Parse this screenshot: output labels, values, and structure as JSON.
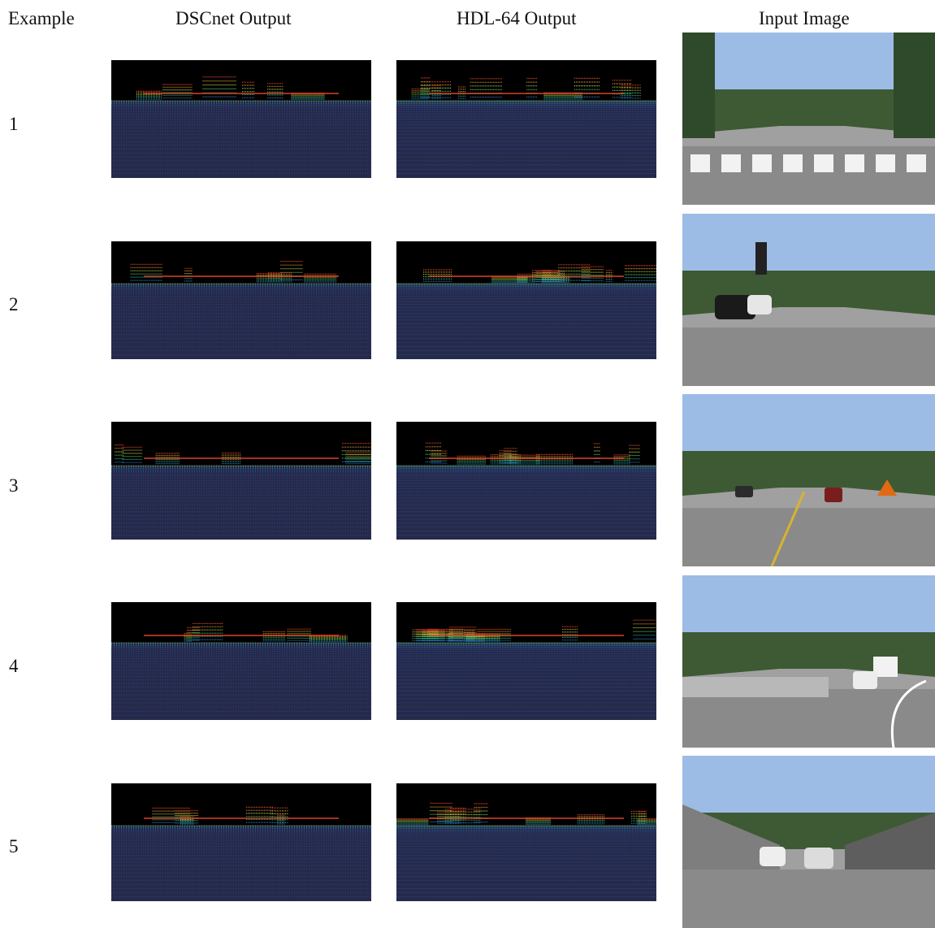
{
  "columns": {
    "example": "Example",
    "dscnet": "DSCnet Output",
    "hdl64": "HDL-64 Output",
    "input": "Input Image"
  },
  "rows": [
    {
      "label": "1",
      "scene": "crosswalk"
    },
    {
      "label": "2",
      "scene": "traffic-light-cars"
    },
    {
      "label": "3",
      "scene": "road-with-cones"
    },
    {
      "label": "4",
      "scene": "curved-road-truck"
    },
    {
      "label": "5",
      "scene": "overpass-cars"
    }
  ],
  "colors": {
    "lidar_background": "#000000",
    "ground_low": "#2a2f7a",
    "mid": "#33c07a",
    "high": "#e8472b",
    "sky": "#8fb3e0",
    "road": "#8c8c8c"
  }
}
